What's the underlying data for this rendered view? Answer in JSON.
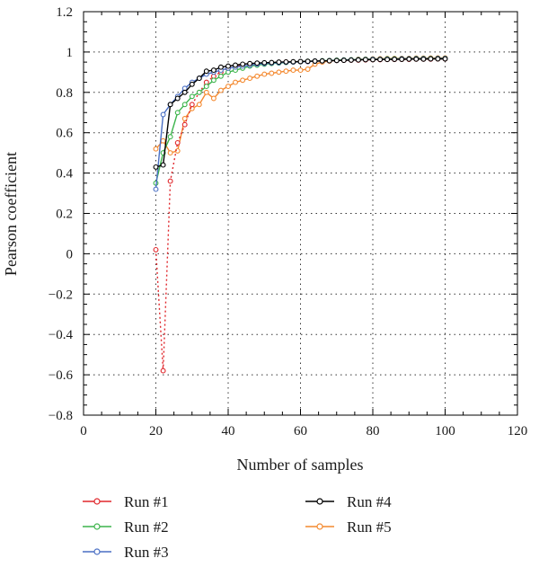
{
  "chart_data": {
    "type": "line",
    "title": "",
    "xlabel": "Number of samples",
    "ylabel": "Pearson coefficient",
    "xlim": [
      0,
      120
    ],
    "ylim": [
      -0.8,
      1.2
    ],
    "xticks": [
      0,
      20,
      40,
      60,
      80,
      100,
      120
    ],
    "yticks": [
      -0.8,
      -0.6,
      -0.4,
      -0.2,
      0,
      0.2,
      0.4,
      0.6,
      0.8,
      1,
      1.2
    ],
    "xtick_labels": [
      "0",
      "20",
      "40",
      "60",
      "80",
      "100",
      "120"
    ],
    "ytick_labels": [
      "−0.8",
      "−0.6",
      "−0.4",
      "−0.2",
      "0",
      "0.2",
      "0.4",
      "0.6",
      "0.8",
      "1",
      "1.2"
    ],
    "grid": true,
    "legend_position": "bottom",
    "series": [
      {
        "name": "Run #1",
        "color": "#e0262b",
        "line_style": "dotted",
        "x": [
          20,
          22,
          24,
          26,
          28,
          30,
          32,
          34,
          36,
          38,
          40,
          42,
          44,
          46,
          48,
          50,
          52,
          54,
          56,
          58,
          60,
          62,
          64,
          66,
          68,
          70,
          72,
          74,
          76,
          78,
          80,
          82,
          84,
          86,
          88,
          90,
          92,
          94,
          96,
          98,
          100
        ],
        "y": [
          0.02,
          -0.58,
          0.36,
          0.55,
          0.64,
          0.74,
          0.8,
          0.85,
          0.88,
          0.9,
          0.92,
          0.93,
          0.935,
          0.94,
          0.94,
          0.945,
          0.945,
          0.948,
          0.95,
          0.95,
          0.952,
          0.953,
          0.955,
          0.956,
          0.957,
          0.958,
          0.959,
          0.96,
          0.96,
          0.961,
          0.962,
          0.962,
          0.963,
          0.963,
          0.964,
          0.964,
          0.965,
          0.965,
          0.965,
          0.966,
          0.966
        ]
      },
      {
        "name": "Run #2",
        "color": "#3cb44b",
        "line_style": "solid",
        "x": [
          20,
          22,
          24,
          26,
          28,
          30,
          32,
          34,
          36,
          38,
          40,
          42,
          44,
          46,
          48,
          50,
          52,
          54,
          56,
          58,
          60,
          62,
          64,
          66,
          68,
          70,
          72,
          74,
          76,
          78,
          80,
          82,
          84,
          86,
          88,
          90,
          92,
          94,
          96,
          98,
          100
        ],
        "y": [
          0.35,
          0.5,
          0.58,
          0.7,
          0.74,
          0.78,
          0.8,
          0.83,
          0.86,
          0.88,
          0.9,
          0.91,
          0.92,
          0.93,
          0.935,
          0.94,
          0.943,
          0.945,
          0.948,
          0.95,
          0.952,
          0.954,
          0.955,
          0.957,
          0.958,
          0.96,
          0.961,
          0.962,
          0.963,
          0.964,
          0.965,
          0.965,
          0.966,
          0.966,
          0.967,
          0.967,
          0.968,
          0.968,
          0.968,
          0.969,
          0.969
        ]
      },
      {
        "name": "Run #3",
        "color": "#4a6fc4",
        "line_style": "solid",
        "x": [
          20,
          22,
          24,
          26,
          28,
          30,
          32,
          34,
          36,
          38,
          40,
          42,
          44,
          46,
          48,
          50,
          52,
          54,
          56,
          58,
          60,
          62,
          64,
          66,
          68,
          70,
          72,
          74,
          76,
          78,
          80,
          82,
          84,
          86,
          88,
          90,
          92,
          94,
          96,
          98,
          100
        ],
        "y": [
          0.32,
          0.69,
          0.74,
          0.78,
          0.82,
          0.85,
          0.87,
          0.89,
          0.9,
          0.91,
          0.92,
          0.925,
          0.93,
          0.935,
          0.94,
          0.943,
          0.945,
          0.947,
          0.949,
          0.95,
          0.952,
          0.953,
          0.955,
          0.956,
          0.957,
          0.958,
          0.96,
          0.961,
          0.962,
          0.963,
          0.964,
          0.964,
          0.965,
          0.965,
          0.966,
          0.966,
          0.967,
          0.967,
          0.967,
          0.968,
          0.968
        ]
      },
      {
        "name": "Run #4",
        "color": "#000000",
        "line_style": "solid",
        "x": [
          20,
          22,
          24,
          26,
          28,
          30,
          32,
          34,
          36,
          38,
          40,
          42,
          44,
          46,
          48,
          50,
          52,
          54,
          56,
          58,
          60,
          62,
          64,
          66,
          68,
          70,
          72,
          74,
          76,
          78,
          80,
          82,
          84,
          86,
          88,
          90,
          92,
          94,
          96,
          98,
          100
        ],
        "y": [
          0.43,
          0.44,
          0.74,
          0.77,
          0.8,
          0.84,
          0.87,
          0.905,
          0.91,
          0.925,
          0.93,
          0.935,
          0.94,
          0.943,
          0.945,
          0.947,
          0.948,
          0.95,
          0.951,
          0.952,
          0.953,
          0.954,
          0.955,
          0.956,
          0.957,
          0.958,
          0.959,
          0.96,
          0.961,
          0.962,
          0.962,
          0.963,
          0.963,
          0.964,
          0.964,
          0.965,
          0.965,
          0.965,
          0.966,
          0.966,
          0.966
        ]
      },
      {
        "name": "Run #5",
        "color": "#f4892f",
        "line_style": "solid",
        "x": [
          20,
          22,
          24,
          26,
          28,
          30,
          32,
          34,
          36,
          38,
          40,
          42,
          44,
          46,
          48,
          50,
          52,
          54,
          56,
          58,
          60,
          62,
          64,
          66,
          68,
          70,
          72,
          74,
          76,
          78,
          80,
          82,
          84,
          86,
          88,
          90,
          92,
          94,
          96,
          98,
          100
        ],
        "y": [
          0.52,
          0.56,
          0.5,
          0.51,
          0.67,
          0.72,
          0.74,
          0.8,
          0.77,
          0.81,
          0.83,
          0.85,
          0.86,
          0.87,
          0.88,
          0.89,
          0.895,
          0.9,
          0.905,
          0.91,
          0.91,
          0.915,
          0.94,
          0.95,
          0.955,
          0.958,
          0.96,
          0.962,
          0.964,
          0.965,
          0.966,
          0.967,
          0.968,
          0.968,
          0.969,
          0.969,
          0.97,
          0.97,
          0.97,
          0.971,
          0.971
        ]
      }
    ]
  }
}
